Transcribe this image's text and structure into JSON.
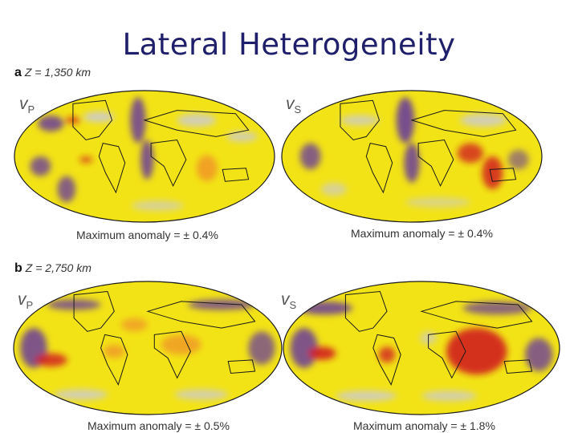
{
  "slide": {
    "title": "Lateral Heterogeneity"
  },
  "rows": [
    {
      "letter": "a",
      "depth_label": "Z = 1,350 km",
      "maps": [
        {
          "velocity": "v",
          "sub": "P",
          "caption": "Maximum anomaly = ± 0.4%"
        },
        {
          "velocity": "v",
          "sub": "S",
          "caption": "Maximum anomaly = ± 0.4%"
        }
      ]
    },
    {
      "letter": "b",
      "depth_label": "Z = 2,750 km",
      "maps": [
        {
          "velocity": "v",
          "sub": "P",
          "caption": "Maximum anomaly = ± 0.5%"
        },
        {
          "velocity": "v",
          "sub": "S",
          "caption": "Maximum anomaly = ± 1.8%"
        }
      ]
    }
  ],
  "colors": {
    "background_yellow": "#f2e316",
    "fast_purple": "#6a3d9a",
    "light_blue": "#c8c8e6",
    "slow_red": "#d21e1e",
    "orange": "#f08c28",
    "coastline": "#1a1a1a"
  }
}
